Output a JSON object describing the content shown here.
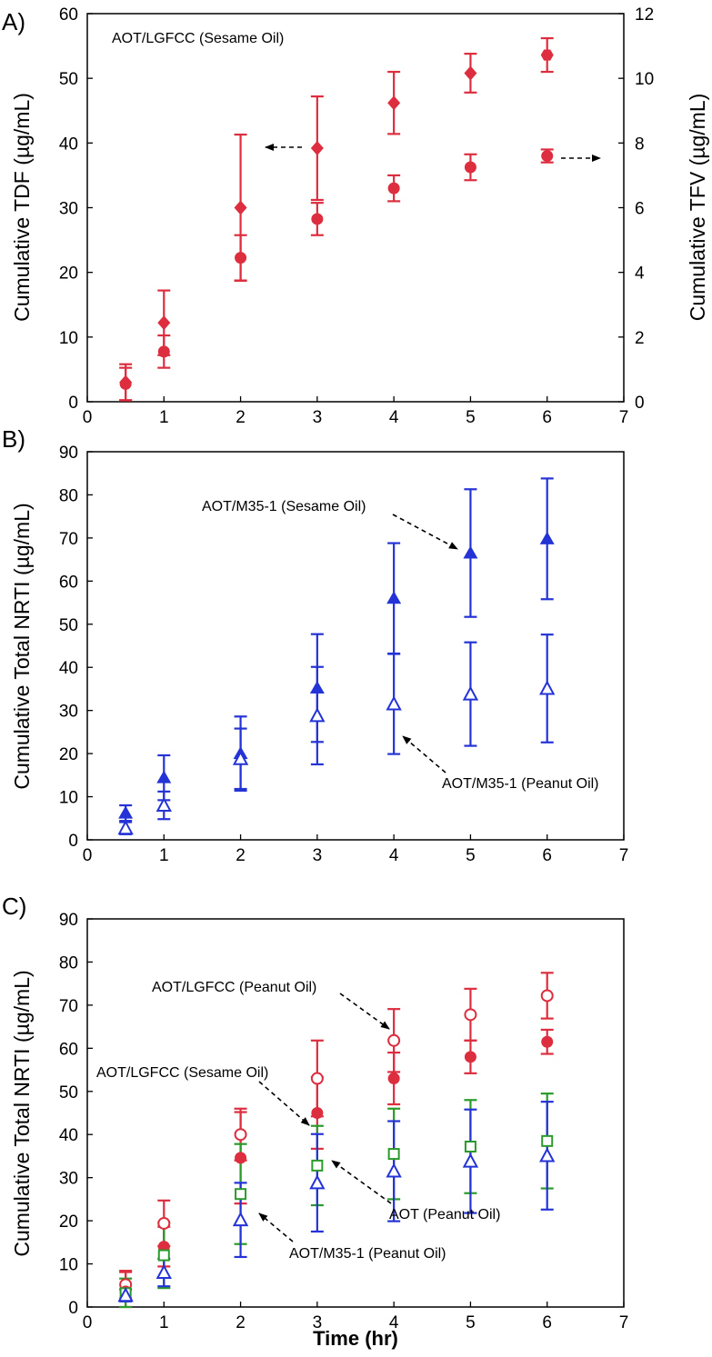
{
  "figure": {
    "xlabel": "Time (hr)"
  },
  "chart_data": [
    {
      "type": "scatter",
      "panel_label": "A)",
      "title": "AOT/LGFCC (Sesame Oil)",
      "xlabel": "",
      "ylabel": "Cumulative TDF (µg/mL)",
      "y2label": "Cumulative TFV (µg/mL)",
      "xlim": [
        0,
        7
      ],
      "ylim": [
        0,
        60
      ],
      "y2lim": [
        0,
        12
      ],
      "xticks": [
        0,
        1,
        2,
        3,
        4,
        5,
        6,
        7
      ],
      "yticks": [
        0,
        10,
        20,
        30,
        40,
        50,
        60
      ],
      "y2ticks": [
        0,
        2,
        4,
        6,
        8,
        10,
        12
      ],
      "series": [
        {
          "name": "TDF",
          "axis": "left",
          "marker": "diamond",
          "color": "#dd2e3f",
          "x": [
            0.5,
            1,
            2,
            3,
            4,
            5,
            6
          ],
          "y": [
            3,
            12.2,
            30,
            39.2,
            46.2,
            50.8,
            null
          ],
          "err": [
            2.8,
            5,
            11.3,
            8,
            4.8,
            3,
            null
          ]
        },
        {
          "name": "TFV",
          "axis": "right",
          "marker": "circle",
          "color": "#dd2e3f",
          "x": [
            0.5,
            1,
            2,
            3,
            4,
            5,
            6
          ],
          "y": [
            0.55,
            1.55,
            4.45,
            5.65,
            6.6,
            7.25,
            7.6
          ],
          "err": [
            0.5,
            0.5,
            0.7,
            0.5,
            0.4,
            0.4,
            0.2
          ]
        },
        {
          "name": "marker-6",
          "axis": "left",
          "marker": "hexagon",
          "color": "#dd2e3f",
          "x": [
            6
          ],
          "y": [
            53.6
          ],
          "err": [
            2.6
          ]
        }
      ],
      "annotations": [
        {
          "text": "",
          "arrow": "left",
          "note": "TDF uses left axis"
        },
        {
          "text": "",
          "arrow": "right",
          "note": "TFV uses right axis"
        }
      ]
    },
    {
      "type": "scatter",
      "panel_label": "B)",
      "xlabel": "",
      "ylabel": "Cumulative Total NRTI (µg/mL)",
      "xlim": [
        0,
        7
      ],
      "ylim": [
        0,
        90
      ],
      "xticks": [
        0,
        1,
        2,
        3,
        4,
        5,
        6,
        7
      ],
      "yticks": [
        0,
        10,
        20,
        30,
        40,
        50,
        60,
        70,
        80,
        90
      ],
      "series": [
        {
          "name": "AOT/M35-1 (Sesame Oil)",
          "marker": "triangle-filled",
          "color": "#2433d6",
          "x": [
            0.5,
            1,
            2,
            3,
            4,
            5,
            6
          ],
          "y": [
            6.2,
            14.4,
            20,
            35.2,
            56,
            66.5,
            69.8
          ],
          "err": [
            1.8,
            5.2,
            8.6,
            12.5,
            12.8,
            14.8,
            14
          ]
        },
        {
          "name": "AOT/M35-1 (Peanut Oil)",
          "marker": "triangle-open",
          "color": "#2433d6",
          "x": [
            0.5,
            1,
            2,
            3,
            4,
            5,
            6
          ],
          "y": [
            2.7,
            8,
            18.8,
            28.8,
            31.5,
            33.8,
            35.1
          ],
          "err": [
            1.4,
            3.2,
            7,
            11.3,
            11.6,
            12,
            12.5
          ]
        }
      ],
      "annotations": [
        {
          "text": "AOT/M35-1 (Sesame Oil)"
        },
        {
          "text": "AOT/M35-1 (Peanut Oil)"
        }
      ]
    },
    {
      "type": "scatter",
      "panel_label": "C)",
      "xlabel": "Time (hr)",
      "ylabel": "Cumulative Total NRTI (µg/mL)",
      "xlim": [
        0,
        7
      ],
      "ylim": [
        0,
        90
      ],
      "xticks": [
        0,
        1,
        2,
        3,
        4,
        5,
        6,
        7
      ],
      "yticks": [
        0,
        10,
        20,
        30,
        40,
        50,
        60,
        70,
        80,
        90
      ],
      "series": [
        {
          "name": "AOT/LGFCC (Peanut Oil)",
          "marker": "circle-open",
          "color": "#dd2e3f",
          "x": [
            0.5,
            1,
            2,
            3,
            4,
            5,
            6
          ],
          "y": [
            5.2,
            19.4,
            40,
            53,
            61.8,
            67.8,
            72.2
          ],
          "err": [
            3.2,
            5.3,
            6,
            8.8,
            7.3,
            6,
            5.3
          ]
        },
        {
          "name": "AOT/LGFCC (Sesame Oil)",
          "marker": "circle-filled",
          "color": "#dd2e3f",
          "x": [
            0.5,
            1,
            2,
            3,
            4,
            5,
            6
          ],
          "y": [
            3.6,
            14,
            34.6,
            45,
            53,
            58,
            61.5
          ],
          "err": [
            4.5,
            4.6,
            10.6,
            8.3,
            6,
            3.8,
            2.8
          ]
        },
        {
          "name": "AOT (Peanut Oil)",
          "marker": "square-open",
          "color": "#2a9a2a",
          "x": [
            0.5,
            1,
            2,
            3,
            4,
            5,
            6
          ],
          "y": [
            3.2,
            12,
            26.2,
            32.8,
            35.5,
            37.2,
            38.5
          ],
          "err": [
            3.4,
            7.6,
            11.6,
            9.2,
            10.5,
            10.8,
            11
          ]
        },
        {
          "name": "AOT/M35-1 (Peanut Oil)",
          "marker": "triangle-open",
          "color": "#2433d6",
          "x": [
            0.5,
            1,
            2,
            3,
            4,
            5,
            6
          ],
          "y": [
            2.7,
            8,
            20.2,
            28.8,
            31.5,
            33.8,
            35.1
          ],
          "err": [
            1.4,
            3.2,
            8.6,
            11.3,
            11.6,
            12,
            12.5
          ]
        }
      ],
      "annotations": [
        {
          "text": "AOT/LGFCC (Peanut Oil)"
        },
        {
          "text": "AOT/LGFCC (Sesame Oil)"
        },
        {
          "text": "AOT (Peanut Oil)"
        },
        {
          "text": "AOT/M35-1 (Peanut Oil)"
        }
      ]
    }
  ]
}
